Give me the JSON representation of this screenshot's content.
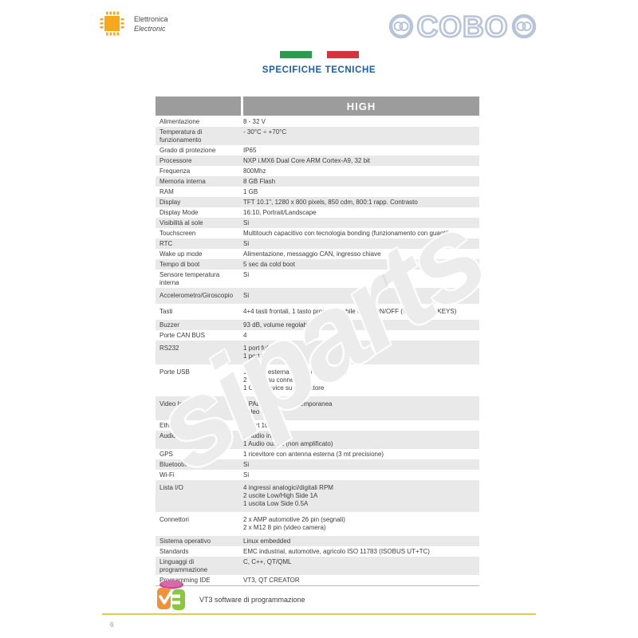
{
  "header": {
    "brand_name": "Elettronica",
    "brand_name_alt": "Electronic",
    "logo_right_text": "COBO"
  },
  "title": {
    "text": "SPECIFICHE TECNICHE",
    "flag_green": "#2e9a4e",
    "flag_red": "#d23440"
  },
  "table": {
    "column_header": "HIGH",
    "rows": [
      {
        "label": "Alimentazione",
        "value": "8 - 32 V"
      },
      {
        "label": "Temperatura di funzionamento",
        "value": "- 30°C ÷ +70°C"
      },
      {
        "label": "Grado di protezione",
        "value": "IP65"
      },
      {
        "label": "Processore",
        "value": "NXP i.MX6 Dual Core ARM Cortex-A9, 32 bit"
      },
      {
        "label": "Frequenza",
        "value": "800Mhz"
      },
      {
        "label": "Memoria interna",
        "value": "8 GB Flash"
      },
      {
        "label": "RAM",
        "value": "1 GB"
      },
      {
        "label": "Display",
        "value": "TFT 10.1\", 1280 x 800 pixels, 850 cdm, 800:1 rapp. Contrasto"
      },
      {
        "label": "Display Mode",
        "value": "16:10, Portrait/Landscape"
      },
      {
        "label": "Visibilità al sole",
        "value": "Si"
      },
      {
        "label": "Touchscreen",
        "value": "Multitouch capacitivo con tecnologia bonding (funzionamento con guanti)"
      },
      {
        "label": "RTC",
        "value": "Si"
      },
      {
        "label": "Wake up mode",
        "value": "Alimentazione, messaggio CAN, ingresso chiave"
      },
      {
        "label": "Tempo di boot",
        "value": "5 sec da cold boot"
      },
      {
        "label": "Sensore temperatura interna",
        "value": "Si"
      },
      {
        "label": "Accelerometro/Giroscopio",
        "value": "Si",
        "pad": true
      },
      {
        "label": "Tasti",
        "value": "4+4 tasti frontali, 1 tasto programmabile come ON/OFF (VERSIONE KEYS)",
        "pad": true
      },
      {
        "label": "Buzzer",
        "value": "93 dB, volume regolabile"
      },
      {
        "label": "Porte CAN BUS",
        "value": "4"
      },
      {
        "label": "RS232",
        "value": "1 port full modem\n1 port Linux Terminal",
        "pad": true
      },
      {
        "label": "Porte USB",
        "value": "1 HOST esterna (VERSIONE KEYS)\n2 HOST su connettore\n1 OTG Device su connettore",
        "pad": true
      },
      {
        "label": "Video Input",
        "value": "4 PAL/NTSC in contemporanea\nVideo over IP",
        "pad": true
      },
      {
        "label": "Ethernet",
        "value": "1 port 10/100"
      },
      {
        "label": "Audio",
        "value": "1 Audio input\n1 Audio output (non amplificato)"
      },
      {
        "label": "GPS",
        "value": "1 ricevitore con antenna esterna (3 mt precisione)"
      },
      {
        "label": "Bluetooth",
        "value": "Si"
      },
      {
        "label": "Wi-Fi",
        "value": "Si"
      },
      {
        "label": "Lista I/O",
        "value": "4 ingressi analogici/digitali RPM\n2 uscite Low/High Side 1A\n1 uscita Low Side 0.5A",
        "pad": true
      },
      {
        "label": "Connettori",
        "value": "2 x AMP automotive 26 pin (segnali)\n2 x M12 8 pin (video camera)",
        "pad": true
      },
      {
        "label": "Sistema operativo",
        "value": "Linux  embedded"
      },
      {
        "label": "Standards",
        "value": "EMC industrial, automotive, agricolo ISO 11783 (ISOBUS UT+TC)"
      },
      {
        "label": "Linguaggi di programmazione",
        "value": "C, C++, QT/QML"
      },
      {
        "label": "Programming IDE",
        "value": "VT3, QT CREATOR"
      }
    ]
  },
  "watermark": {
    "text": "siparts"
  },
  "footer": {
    "software_label": "VT3  software di programmazione",
    "page_number": "6"
  },
  "colors": {
    "accent_blue": "#1b5fa6",
    "header_gray": "#9c9c9c",
    "row_gray": "#e9e9e9",
    "chip_orange": "#f7a81b",
    "cobo_blue": "#b7c4da",
    "footer_line_yellow": "#e9c94e",
    "vt3_pink": "#c9488f",
    "vt3_orange": "#f0913b",
    "vt3_green": "#8cc63e"
  }
}
